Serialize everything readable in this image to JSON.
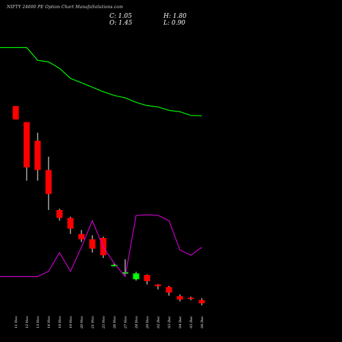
{
  "header": {
    "title": "NIFTY 24600  PE Option  Chart ManafaSolutions.com",
    "close_label": "C: 1.05",
    "high_label": "H: 1.80",
    "open_label": "O: 1.45",
    "low_label": "L: 0.90"
  },
  "colors": {
    "background": "#000000",
    "up": "#00ff00",
    "down": "#ff0000",
    "wick": "#ffffff",
    "ma_line": "#00ff00",
    "volume_line": "#cc00cc"
  },
  "chart_data": {
    "type": "candlestick",
    "categories": [
      "11 Nov",
      "12 Nov",
      "13 Nov",
      "14 Nov",
      "18 Nov",
      "19 Nov",
      "20 Nov",
      "21 Nov",
      "25 Nov",
      "26 Nov",
      "27 Nov",
      "28 Nov",
      "29 Nov",
      "02 Dec",
      "03 Dec",
      "04 Dec",
      "05 Dec",
      "06 Dec"
    ],
    "candles": [
      {
        "open": 65.0,
        "high": 65.0,
        "low": 60.0,
        "close": 60.0
      },
      {
        "open": 59.0,
        "high": 59.0,
        "low": 37.0,
        "close": 42.0
      },
      {
        "open": 52.0,
        "high": 55.0,
        "low": 37.0,
        "close": 41.0
      },
      {
        "open": 41.0,
        "high": 46.0,
        "low": 26.0,
        "close": 32.0
      },
      {
        "open": 26.0,
        "high": 26.5,
        "low": 22.0,
        "close": 23.0
      },
      {
        "open": 23.0,
        "high": 23.5,
        "low": 17.0,
        "close": 19.0
      },
      {
        "open": 17.0,
        "high": 18.5,
        "low": 14.0,
        "close": 15.0
      },
      {
        "open": 15.0,
        "high": 16.5,
        "low": 10.0,
        "close": 11.5
      },
      {
        "open": 15.5,
        "high": 16.0,
        "low": 8.0,
        "close": 9.0
      },
      {
        "open": 5.2,
        "high": 6.0,
        "low": 4.9,
        "close": 5.4
      },
      {
        "open": 2.3,
        "high": 7.5,
        "low": 1.5,
        "close": 2.6
      },
      {
        "open": 0.0,
        "high": 2.8,
        "low": -0.5,
        "close": 2.2
      },
      {
        "open": 1.6,
        "high": 1.8,
        "low": -2.0,
        "close": -0.7
      },
      {
        "open": -2.0,
        "high": -1.8,
        "low": -3.8,
        "close": -2.6
      },
      {
        "open": -2.9,
        "high": -2.5,
        "low": -6.2,
        "close": -5.0
      },
      {
        "open": -6.3,
        "high": -5.7,
        "low": -8.3,
        "close": -7.6
      },
      {
        "open": -6.9,
        "high": -6.5,
        "low": -7.9,
        "close": -7.2
      },
      {
        "open": -7.8,
        "high": -7.1,
        "low": -9.8,
        "close": -9.0
      }
    ],
    "moving_average": [
      87.0,
      87.0,
      82.2,
      81.6,
      79.2,
      75.4,
      73.8,
      72.1,
      70.4,
      69.0,
      68.1,
      66.4,
      65.2,
      64.7,
      63.4,
      62.9,
      61.5,
      61.4
    ],
    "volume_line": [
      1.0,
      1.0,
      1.0,
      3.0,
      10.0,
      3.0,
      12.0,
      22.0,
      12.0,
      6.0,
      1.0,
      24.0,
      24.2,
      24.0,
      22.0,
      11.0,
      9.0,
      12.0
    ],
    "ylim": [
      -12,
      92
    ]
  }
}
